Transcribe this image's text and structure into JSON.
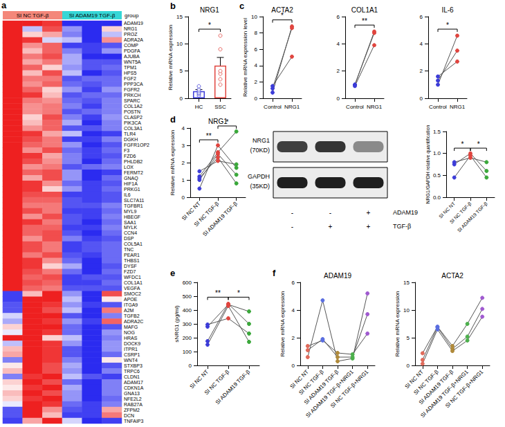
{
  "chart_data": [
    {
      "panel": "a",
      "type": "heatmap",
      "group_title": "group",
      "groups": [
        {
          "name": "SI NC TGF-β",
          "color": "#f4877a",
          "columns": 3
        },
        {
          "name": "SI ADAM19 TGF-β",
          "color": "#36d6d6",
          "columns": 3
        }
      ],
      "rows": [
        "ADAM19",
        "NRG1",
        "PROZ",
        "ADRA2A",
        "COMP",
        "PDGFA",
        "AJUBA",
        "WNT5A",
        "TPM1",
        "HPS5",
        "FGF2",
        "PPP3CA",
        "FGFR2",
        "PRKCH",
        "SPARC",
        "COL1A2",
        "POSTN",
        "CLASP2",
        "PIK3CA",
        "COL3A1",
        "TLR4",
        "DGKH",
        "FGFR1OP2",
        "F3",
        "FZD6",
        "PHLDB2",
        "LOX",
        "FERMT2",
        "GNAQ",
        "HIF1A",
        "PRKG1",
        "IL6",
        "SLC7A11",
        "TGFBR1",
        "MYL9",
        "HBEGF",
        "SAA1",
        "MYLK",
        "CCN4",
        "DSP",
        "COL5A1",
        "TNC",
        "PEAR1",
        "THBS1",
        "DYSF",
        "FZD7",
        "WFDC1",
        "COL1A1",
        "VEGFA",
        "SMOC2",
        "APOE",
        "ITGA9",
        "A2M",
        "TGFB2",
        "ADRA2C",
        "MAFG",
        "NOG",
        "HRAS",
        "DOCK9",
        "ITPR1",
        "CSRP1",
        "WNT4",
        "STXBP3",
        "TRPC6",
        "CLDN1",
        "ADAM17",
        "CDKN1A",
        "GNA13",
        "NFE2L2",
        "RAB27A",
        "ZFPM2",
        "DCN",
        "TNFAIP3"
      ],
      "cells": [
        [
          1,
          1,
          0.9,
          -1,
          -1,
          -1
        ],
        [
          1,
          -0.3,
          0.8,
          -0.5,
          -1,
          0.2
        ],
        [
          1,
          0.2,
          0.4,
          -0.6,
          -1,
          -0.3
        ],
        [
          1,
          0.9,
          -0.2,
          -0.3,
          -1,
          0.5
        ],
        [
          1,
          0.5,
          0.7,
          -0.9,
          -0.9,
          -0.8
        ],
        [
          1,
          0.3,
          0.7,
          -0.6,
          -0.9,
          -0.5
        ],
        [
          1,
          0.6,
          0.8,
          -0.4,
          -1,
          -1
        ],
        [
          1,
          0.4,
          0.6,
          -0.4,
          -0.8,
          -0.8
        ],
        [
          1,
          0.7,
          0.2,
          -0.5,
          -0.8,
          -0.7
        ],
        [
          1,
          0.3,
          0.8,
          -0.3,
          -1,
          -0.8
        ],
        [
          1,
          0.6,
          0.6,
          -0.8,
          -0.7,
          -0.7
        ],
        [
          1,
          0.5,
          0.7,
          -0.7,
          -0.8,
          -0.7
        ],
        [
          1,
          0.7,
          0.2,
          -0.5,
          -0.9,
          -0.5
        ],
        [
          1,
          0.9,
          0.3,
          -0.8,
          -0.7,
          -0.7
        ],
        [
          1,
          0.6,
          0.5,
          -0.7,
          -0.8,
          -0.6
        ],
        [
          1,
          0.5,
          0.6,
          -0.6,
          -0.9,
          -0.6
        ],
        [
          1,
          0.5,
          0.6,
          -0.8,
          -0.7,
          -0.6
        ],
        [
          1,
          0.2,
          0.8,
          -0.6,
          -0.9,
          -0.5
        ],
        [
          1,
          0.3,
          0.7,
          -0.4,
          -1,
          -0.6
        ],
        [
          1,
          0.5,
          0.7,
          -0.8,
          -0.8,
          -0.6
        ],
        [
          1,
          0.9,
          0.4,
          -0.3,
          -1,
          -0.9
        ],
        [
          1,
          0.8,
          0.6,
          -0.9,
          -0.9,
          -0.6
        ],
        [
          1,
          0.7,
          0.6,
          -0.5,
          -1,
          -0.8
        ],
        [
          1,
          0.5,
          0.8,
          -0.7,
          -0.9,
          -0.7
        ],
        [
          1,
          0.9,
          0.4,
          -0.6,
          -0.9,
          -0.8
        ],
        [
          1,
          0.8,
          0.5,
          -0.6,
          -1,
          -0.7
        ],
        [
          1,
          0.5,
          0.6,
          -0.8,
          -0.7,
          -0.6
        ],
        [
          1,
          0.7,
          0.8,
          -0.5,
          -1,
          -0.9
        ],
        [
          1,
          0.4,
          0.8,
          -0.5,
          -1,
          -0.7
        ],
        [
          1,
          0.9,
          0.5,
          -0.7,
          -0.9,
          -0.8
        ],
        [
          1,
          0.9,
          0.2,
          -0.5,
          -0.9,
          -0.7
        ],
        [
          1,
          0.8,
          0.8,
          -0.9,
          -0.9,
          -0.8
        ],
        [
          1,
          0.7,
          0.7,
          -0.8,
          -0.9,
          -0.8
        ],
        [
          1,
          0.6,
          0.6,
          -0.8,
          -0.8,
          -0.6
        ],
        [
          1,
          0.8,
          0.6,
          -0.9,
          -0.9,
          -0.7
        ],
        [
          1,
          0.5,
          0.8,
          -0.8,
          -0.9,
          -0.6
        ],
        [
          1,
          0.9,
          0.6,
          -0.8,
          -1,
          -0.7
        ],
        [
          1,
          0.7,
          0.7,
          -0.9,
          -0.9,
          -0.6
        ],
        [
          1,
          0.7,
          0.8,
          -0.8,
          -1,
          -0.7
        ],
        [
          1,
          0.5,
          0.8,
          -0.6,
          -0.9,
          -0.8
        ],
        [
          1,
          0.8,
          0.6,
          -0.9,
          -0.8,
          -0.7
        ],
        [
          1,
          0.8,
          0.6,
          -0.9,
          -0.8,
          -0.7
        ],
        [
          1,
          0.6,
          0.8,
          -0.8,
          -0.9,
          -0.7
        ],
        [
          1,
          0.9,
          0.5,
          -0.7,
          -1,
          -0.7
        ],
        [
          1,
          0.9,
          0.2,
          -0.4,
          -1,
          -0.8
        ],
        [
          1,
          0.8,
          0.6,
          -0.7,
          -1,
          -0.7
        ],
        [
          1,
          0.7,
          0.8,
          -0.9,
          -0.8,
          -0.8
        ],
        [
          1,
          0.8,
          0.7,
          -0.9,
          -0.9,
          -0.7
        ],
        [
          1,
          0.7,
          0.6,
          -0.8,
          -0.8,
          -0.8
        ],
        [
          -0.9,
          0.3,
          1,
          -0.5,
          -1,
          0.8
        ],
        [
          -0.9,
          1,
          1,
          -0.3,
          -1,
          0.1
        ],
        [
          -0.8,
          1,
          0.9,
          -0.5,
          -0.9,
          -0.8
        ],
        [
          -0.8,
          1,
          0.8,
          -0.3,
          -1,
          0.6
        ],
        [
          -0.2,
          1,
          1,
          -0.8,
          -1,
          -0.6
        ],
        [
          -0.4,
          1,
          0.9,
          -0.5,
          -0.9,
          0.7
        ],
        [
          0.2,
          1,
          1,
          -0.7,
          -1,
          -0.8
        ],
        [
          -0.1,
          1,
          0.9,
          -0.7,
          -1,
          -0.5
        ],
        [
          1,
          1,
          0.2,
          -0.3,
          -1,
          -0.6
        ],
        [
          -0.3,
          1,
          0.9,
          -0.5,
          -1,
          -0.5
        ],
        [
          0.3,
          1,
          0.9,
          -0.8,
          -1,
          -0.5
        ],
        [
          0.4,
          1,
          0.9,
          -0.8,
          -1,
          -0.7
        ],
        [
          -0.6,
          1,
          0.9,
          -0.6,
          -1,
          0.1
        ],
        [
          0.1,
          1,
          0.8,
          -0.4,
          -1,
          -0.8
        ],
        [
          0.3,
          1,
          0.8,
          -0.5,
          -1,
          -0.6
        ],
        [
          -0.6,
          0.9,
          1,
          -0.3,
          -0.8,
          -0.9
        ],
        [
          0.2,
          1,
          0.8,
          -0.7,
          -1,
          -0.6
        ],
        [
          0.1,
          0.9,
          1,
          -0.4,
          -1,
          -0.6
        ],
        [
          0.3,
          1,
          0.8,
          -0.5,
          -1,
          -0.6
        ],
        [
          0.2,
          0.9,
          1,
          -0.5,
          -1,
          -0.7
        ],
        [
          -0.1,
          1,
          0.9,
          -0.7,
          -0.9,
          -0.6
        ],
        [
          -0.8,
          1,
          0.5,
          -0.8,
          -0.9,
          0.4
        ],
        [
          -0.8,
          1,
          0.3,
          -0.9,
          -0.9,
          0.6
        ],
        [
          -0.9,
          0.4,
          1,
          -0.2,
          -1,
          -0.9
        ]
      ],
      "color_scale": {
        "min": -1,
        "max": 1,
        "colors": [
          "#2b2bf0",
          "#ffffff",
          "#ee2020"
        ]
      }
    },
    {
      "panel": "b",
      "type": "bar",
      "title": "NRG1",
      "categories": [
        "HC",
        "SSC"
      ],
      "values": [
        1.3,
        6.0
      ],
      "errors": [
        0.3,
        1.5
      ],
      "colors": [
        "#3c3cd8",
        "#e0453f"
      ],
      "points": [
        [
          0.5,
          0.8,
          1.0,
          1.3,
          1.6,
          2.2
        ],
        [
          2.5,
          3.5,
          4.5,
          5.0,
          9.0,
          11.5
        ]
      ],
      "ylabel": "Relative mRNA expression",
      "ylim": [
        0,
        15
      ],
      "yticks": [
        0,
        5,
        10,
        15
      ],
      "significance": [
        {
          "from": "HC",
          "to": "SSC",
          "label": "*"
        }
      ]
    },
    {
      "panel": "c",
      "type": "paired",
      "title": "ACTA2",
      "categories": [
        "Control",
        "NRG1"
      ],
      "colors": [
        "#3c3cd8",
        "#e0453f"
      ],
      "color": "#555555",
      "subjects": [
        [
          0.7,
          8.8
        ],
        [
          1.2,
          8.6
        ],
        [
          1.5,
          5.1
        ]
      ],
      "ylabel": "Relative mRNA expression level",
      "ylim": [
        0,
        10
      ],
      "yticks": [
        0,
        2,
        4,
        6,
        8,
        10
      ],
      "significance": [
        {
          "from": "Control",
          "to": "NRG1",
          "label": "*"
        }
      ]
    },
    {
      "type": "paired",
      "title": "COL1A1",
      "categories": [
        "Control",
        "NRG1"
      ],
      "colors": [
        "#3c3cd8",
        "#e0453f"
      ],
      "color": "#555555",
      "subjects": [
        [
          1.0,
          4.9
        ],
        [
          1.0,
          4.8
        ],
        [
          0.9,
          3.9
        ]
      ],
      "ylim": [
        0,
        6
      ],
      "yticks": [
        0,
        2,
        4,
        6
      ],
      "significance": [
        {
          "from": "Control",
          "to": "NRG1",
          "label": "**"
        }
      ]
    },
    {
      "type": "paired",
      "title": "IL-6",
      "categories": [
        "Control",
        "NRG1"
      ],
      "colors": [
        "#3c3cd8",
        "#e0453f"
      ],
      "color": "#555555",
      "subjects": [
        [
          1.0,
          4.6
        ],
        [
          1.3,
          3.5
        ],
        [
          1.6,
          2.7
        ]
      ],
      "ylim": [
        0,
        6
      ],
      "yticks": [
        0,
        2,
        4,
        6
      ],
      "significance": [
        {
          "from": "Control",
          "to": "NRG1",
          "label": "*"
        }
      ]
    },
    {
      "panel": "d",
      "type": "paired",
      "title": "NRG1",
      "categories": [
        "SI NC NT",
        "SI NC TGF-β",
        "SI ADAM19 TGF-β"
      ],
      "colors": [
        "#3c3cd8",
        "#e0453f",
        "#3aa83a"
      ],
      "color": "#555555",
      "subjects": [
        [
          0.5,
          3.0,
          1.7
        ],
        [
          1.0,
          2.5,
          1.3
        ],
        [
          1.1,
          2.3,
          0.8
        ],
        [
          1.2,
          2.6,
          3.8
        ],
        [
          1.5,
          2.1,
          1.9
        ]
      ],
      "ylabel": "Relative mRNA expression",
      "ylim": [
        0,
        4
      ],
      "yticks": [
        0,
        1,
        2,
        3,
        4
      ],
      "significance": [
        {
          "from": "SI NC NT",
          "to": "SI NC TGF-β",
          "label": "**"
        },
        {
          "from": "SI NC TGF-β",
          "to": "SI ADAM19 TGF-β",
          "label": "*"
        }
      ]
    },
    {
      "type": "blot",
      "bands": [
        {
          "name": "NRG1",
          "size": "(70KD)",
          "intensity": [
            0.8,
            0.85,
            0.45
          ]
        },
        {
          "name": "GAPDH",
          "size": "(35KD)",
          "intensity": [
            0.95,
            0.95,
            0.95
          ]
        }
      ],
      "conditions": [
        {
          "name": "ADAM19",
          "signs": [
            "-",
            "-",
            "+"
          ]
        },
        {
          "name": "TGF-β",
          "signs": [
            "-",
            "+",
            "+"
          ]
        }
      ]
    },
    {
      "type": "paired",
      "categories": [
        "SI NC NT",
        "SI NC TGF-β",
        "SI ADAM19 TGF-β"
      ],
      "colors": [
        "#3c3cd8",
        "#e0453f",
        "#3aa83a"
      ],
      "color": "#555555",
      "subjects": [
        [
          0.45,
          0.95,
          0.45
        ],
        [
          0.75,
          1.0,
          0.6
        ],
        [
          0.8,
          0.9,
          0.8
        ]
      ],
      "ylabel": "NRG1/GAPDH relative quantification",
      "ylim": [
        0,
        1.5
      ],
      "yticks": [
        {
          "value": 0,
          "label": "0.0"
        },
        {
          "value": 0.5,
          "label": "0.5"
        },
        {
          "value": 1,
          "label": "1.0"
        },
        {
          "value": 1.5,
          "label": "1.5"
        }
      ],
      "significance": [
        {
          "from": "SI NC NT",
          "to": "SI NC TGF-β",
          "label": "*"
        },
        {
          "from": "SI NC TGF-β",
          "to": "SI ADAM19 TGF-β",
          "label": "*"
        }
      ]
    },
    {
      "panel": "e",
      "type": "paired",
      "categories": [
        "SI NC NT",
        "SI NC TGF-β",
        "SI ADAM19 TGF-β"
      ],
      "colors": [
        "#3c3cd8",
        "#e0453f",
        "#3aa83a"
      ],
      "color": "#555555",
      "subjects": [
        [
          150,
          430,
          170
        ],
        [
          175,
          445,
          300
        ],
        [
          280,
          440,
          390
        ],
        [
          295,
          340,
          230
        ]
      ],
      "ylabel": "sNRG1 (pg/ml)",
      "ylim": [
        0,
        600
      ],
      "yticks": [
        0,
        100,
        200,
        300,
        400,
        500,
        600
      ],
      "significance": [
        {
          "from": "SI NC NT",
          "to": "SI NC TGF-β",
          "label": "**"
        },
        {
          "from": "SI NC TGF-β",
          "to": "SI ADAM19 TGF-β",
          "label": "*"
        }
      ]
    },
    {
      "panel": "f",
      "type": "paired",
      "title": "ADAM19",
      "categories": [
        "SI NC NT",
        "SI NC TGF-β",
        "SI ADAM19 TGF-β",
        "SI ADAM19 TGF-β+NRG1",
        "SI NC TGF-β+NRG1"
      ],
      "colors": [
        "#e06a5a",
        "#5a6ee0",
        "#b08a3a",
        "#4cb04c",
        "#a05ad0"
      ],
      "color": "#555555",
      "subjects": [
        [
          0.6,
          4.7,
          0.3,
          0.5,
          5.2
        ],
        [
          1.1,
          1.9,
          0.6,
          0.6,
          3.7
        ],
        [
          1.4,
          1.8,
          0.9,
          0.8,
          2.3
        ]
      ],
      "ylabel": "Relative mRNA expression",
      "ylim": [
        0,
        6
      ],
      "yticks": [
        0,
        2,
        4,
        6
      ]
    },
    {
      "type": "paired",
      "title": "ACTA2",
      "categories": [
        "SI NC NT",
        "SI NC TGF-β",
        "SI ADAM19 TGF-β",
        "SI ADAM19 TGF-β+NRG1",
        "SI NC TGF-β+NRG1"
      ],
      "colors": [
        "#e06a5a",
        "#5a6ee0",
        "#b08a3a",
        "#4cb04c",
        "#a05ad0"
      ],
      "color": "#555555",
      "subjects": [
        [
          0.3,
          6.5,
          2.6,
          4.5,
          8.8
        ],
        [
          1.0,
          6.9,
          3.0,
          5.2,
          10.2
        ],
        [
          2.2,
          7.0,
          3.5,
          7.5,
          12.2
        ]
      ],
      "ylabel": "Relative mRNA expression",
      "ylim": [
        0,
        15
      ],
      "yticks": [
        0,
        5,
        10,
        15
      ]
    }
  ]
}
